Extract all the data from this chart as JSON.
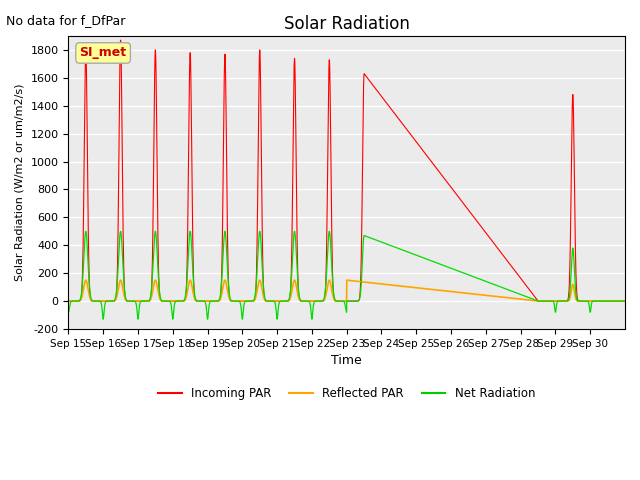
{
  "title": "Solar Radiation",
  "suptitle": "No data for f_DfPar",
  "xlabel": "Time",
  "ylabel": "Solar Radiation (W/m2 or um/m2/s)",
  "ylim": [
    -200,
    1900
  ],
  "yticks": [
    -200,
    0,
    200,
    400,
    600,
    800,
    1000,
    1200,
    1400,
    1600,
    1800
  ],
  "xtick_labels": [
    "Sep 15",
    "Sep 16",
    "Sep 17",
    "Sep 18",
    "Sep 19",
    "Sep 20",
    "Sep 21",
    "Sep 22",
    "Sep 23",
    "Sep 24",
    "Sep 25",
    "Sep 26",
    "Sep 27",
    "Sep 28",
    "Sep 29",
    "Sep 30"
  ],
  "legend_labels": [
    "Incoming PAR",
    "Reflected PAR",
    "Net Radiation"
  ],
  "legend_colors": [
    "#ff0000",
    "#ffa500",
    "#00cc00"
  ],
  "annotation_text": "SI_met",
  "annotation_color": "#cc0000",
  "annotation_bg": "#ffff99",
  "plot_bg": "#ebebeb",
  "incoming_color": "#ff0000",
  "reflected_color": "#ffa500",
  "net_color": "#00dd00"
}
